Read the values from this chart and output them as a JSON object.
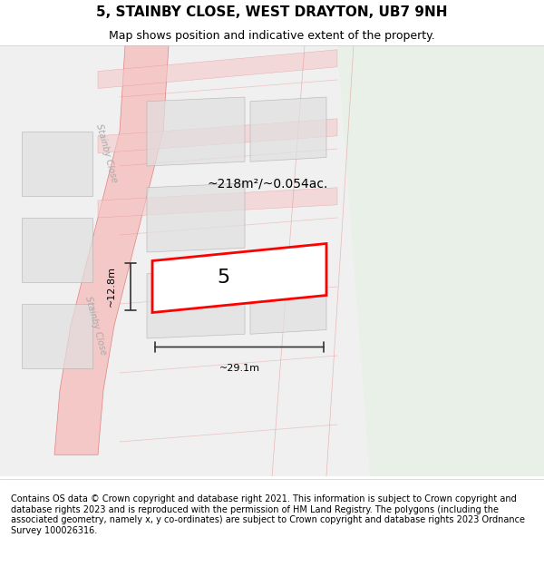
{
  "title": "5, STAINBY CLOSE, WEST DRAYTON, UB7 9NH",
  "subtitle": "Map shows position and indicative extent of the property.",
  "footer": "Contains OS data © Crown copyright and database right 2021. This information is subject to Crown copyright and database rights 2023 and is reproduced with the permission of HM Land Registry. The polygons (including the associated geometry, namely x, y co-ordinates) are subject to Crown copyright and database rights 2023 Ordnance Survey 100026316.",
  "area_label": "~218m²/~0.054ac.",
  "width_label": "~29.1m",
  "height_label": "~12.8m",
  "property_number": "5",
  "bg_color": "#f5f5f5",
  "map_bg": "#f0f0f0",
  "road_color": "#f5c8c8",
  "road_border_color": "#e08080",
  "plot_color_fill": "#ffffff",
  "plot_color_border": "#cccccc",
  "highlight_color": "#ff0000",
  "highlight_fill": "#ffffff",
  "green_area": "#e8f0e8",
  "road_label_color": "#aaaaaa",
  "dim_color": "#333333",
  "title_fontsize": 11,
  "subtitle_fontsize": 9,
  "footer_fontsize": 7
}
